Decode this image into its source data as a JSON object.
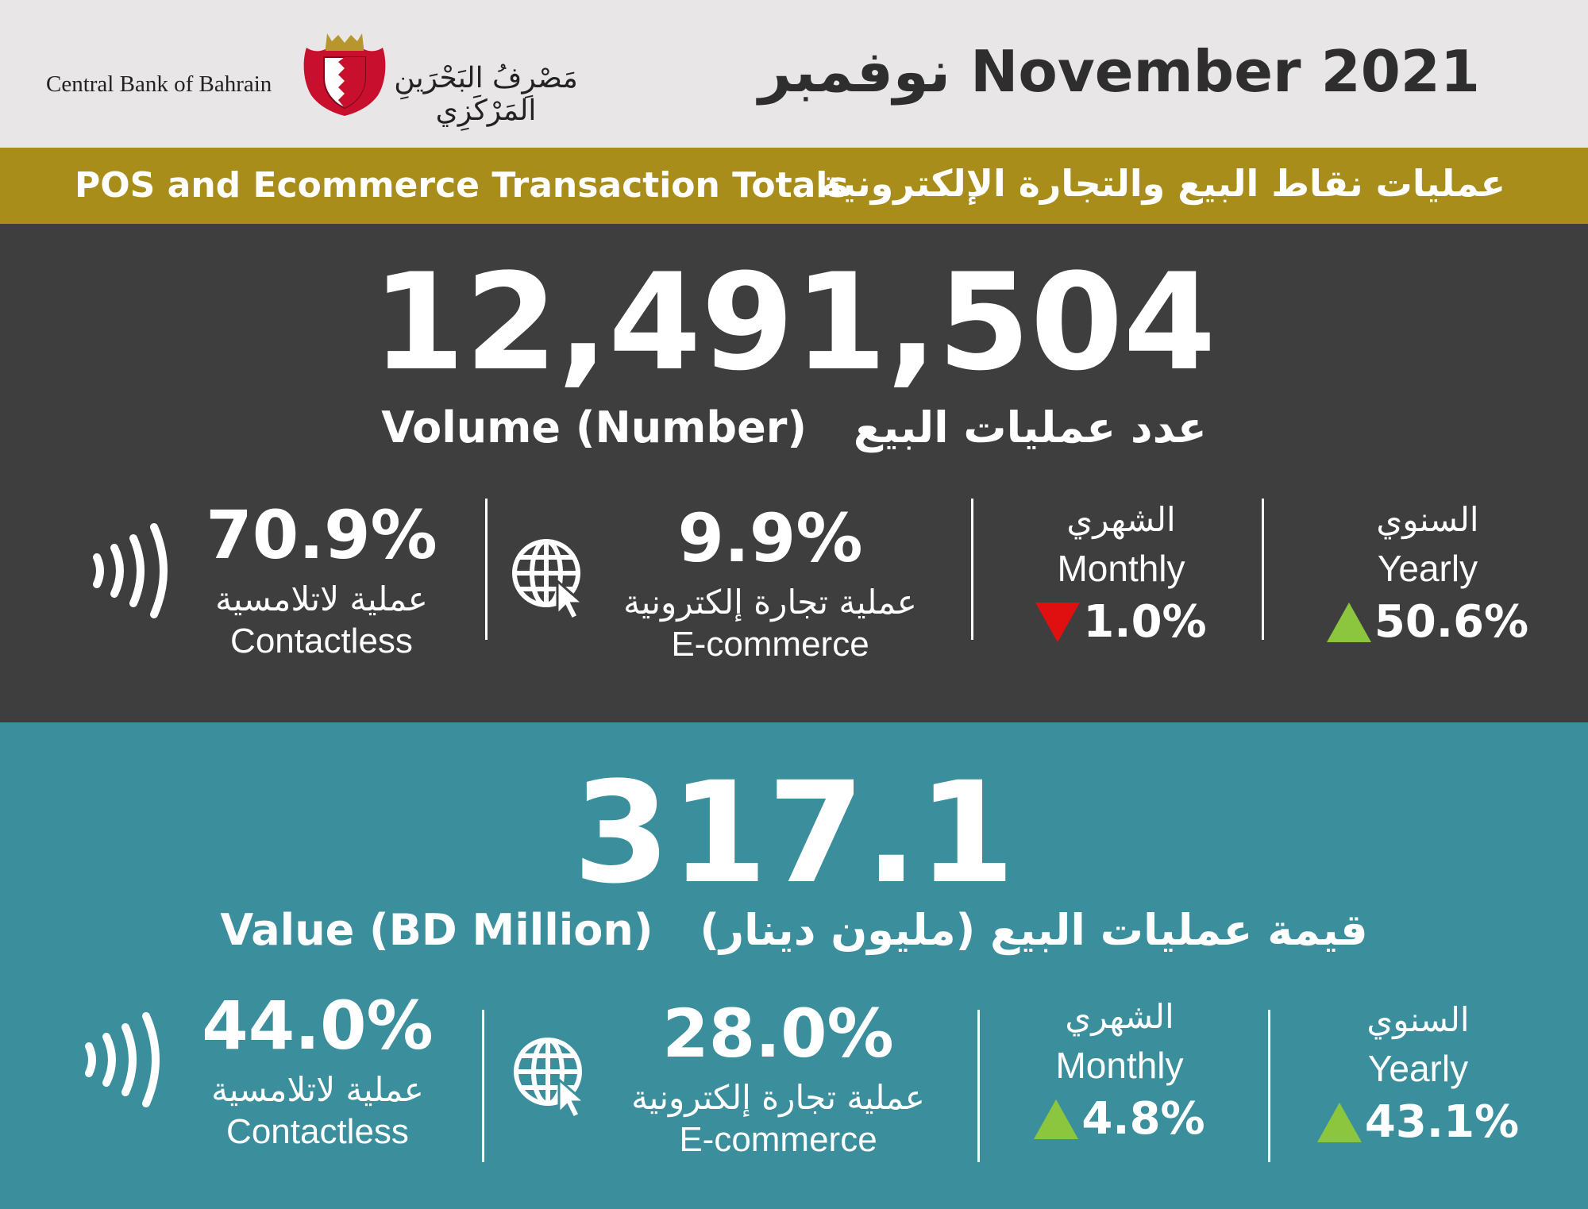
{
  "header": {
    "logo_en": "Central Bank of Bahrain",
    "logo_ar": "مَصْرِفُ البَحْرَينِ المَرْكَزِي",
    "month_title": "نوفمبر November 2021"
  },
  "banner": {
    "en": "POS and Ecommerce Transaction Totals",
    "ar": "عمليات نقاط البيع والتجارة الإلكترونية"
  },
  "volume": {
    "value": "12,491,504",
    "label_en": "Volume (Number)",
    "label_ar": "عدد عمليات البيع",
    "contactless": {
      "icon": "contactless-icon",
      "pct": "70.9%",
      "label_ar": "عملية لاتلامسية",
      "label_en": "Contactless"
    },
    "ecommerce": {
      "icon": "globe-cursor-icon",
      "pct": "9.9%",
      "label_ar": "عملية تجارة إلكترونية",
      "label_en": "E-commerce"
    },
    "monthly": {
      "label_ar": "الشهري",
      "label_en": "Monthly",
      "direction": "down",
      "value": "1.0%"
    },
    "yearly": {
      "label_ar": "السنوي",
      "label_en": "Yearly",
      "direction": "up",
      "value": "50.6%"
    }
  },
  "value": {
    "value": "317.1",
    "label_en": "Value (BD Million)",
    "label_ar": "قيمة عمليات البيع (مليون دينار)",
    "contactless": {
      "icon": "contactless-icon",
      "pct": "44.0%",
      "label_ar": "عملية لاتلامسية",
      "label_en": "Contactless"
    },
    "ecommerce": {
      "icon": "globe-cursor-icon",
      "pct": "28.0%",
      "label_ar": "عملية تجارة إلكترونية",
      "label_en": "E-commerce"
    },
    "monthly": {
      "label_ar": "الشهري",
      "label_en": "Monthly",
      "direction": "up",
      "value": "4.8%"
    },
    "yearly": {
      "label_ar": "السنوي",
      "label_en": "Yearly",
      "direction": "up",
      "value": "43.1%"
    }
  },
  "colors": {
    "header_bg": "#e8e6e7",
    "banner_bg": "#a88d1a",
    "volume_bg": "#3e3e3e",
    "value_bg": "#3b8f9d",
    "up": "#8cc63f",
    "down": "#e01010",
    "crest_red": "#c8102e"
  }
}
